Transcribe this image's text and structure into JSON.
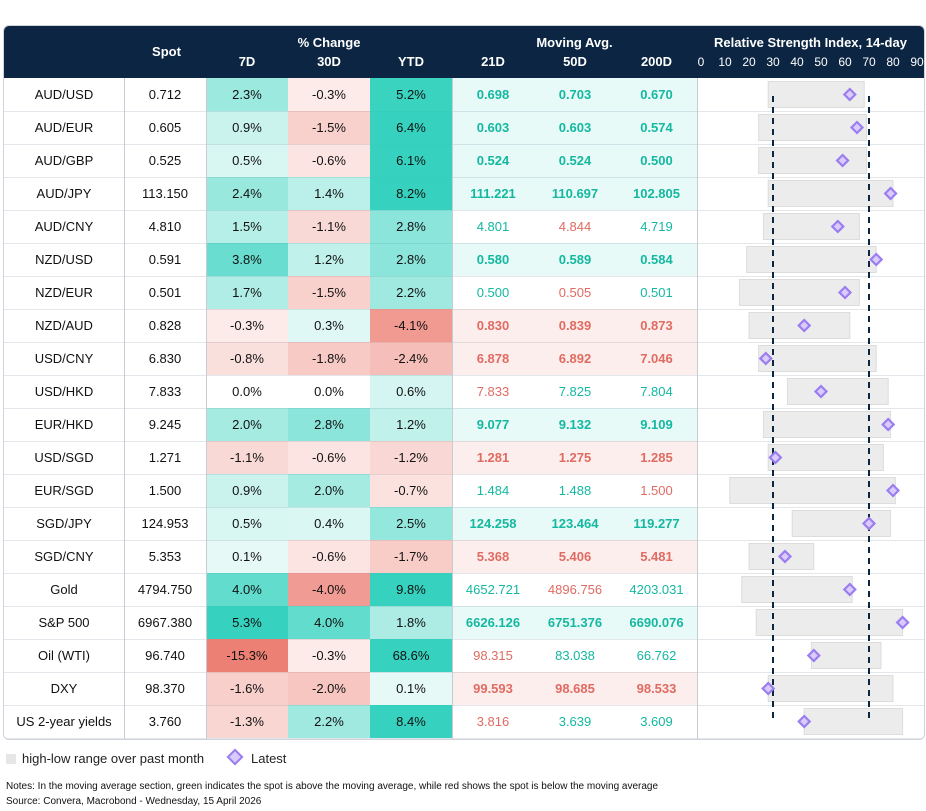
{
  "headers": {
    "spot": "Spot",
    "pct_change": "% Change",
    "d7": "7D",
    "d30": "30D",
    "ytd": "YTD",
    "moving_avg": "Moving Avg.",
    "ma21": "21D",
    "ma50": "50D",
    "ma200": "200D",
    "rsi_title": "Relative Strength Index, 14-day"
  },
  "chart_data": {
    "type": "table",
    "rsi_axis": {
      "min": 0,
      "max": 90,
      "ticks": [
        0,
        10,
        20,
        30,
        40,
        50,
        60,
        70,
        80,
        90
      ],
      "reference_lines": [
        30,
        70
      ]
    },
    "rows": [
      {
        "name": "AUD/USD",
        "spot": "0.712",
        "d7": "2.3%",
        "d30": "-0.3%",
        "ytd": "5.2%",
        "ma21": "0.698",
        "ma50": "0.703",
        "ma200": "0.670",
        "ma_colors": [
          "green",
          "green",
          "green"
        ],
        "ma_bold": true,
        "rsi_low": 28,
        "rsi_high": 68,
        "rsi_latest": 62
      },
      {
        "name": "AUD/EUR",
        "spot": "0.605",
        "d7": "0.9%",
        "d30": "-1.5%",
        "ytd": "6.4%",
        "ma21": "0.603",
        "ma50": "0.603",
        "ma200": "0.574",
        "ma_colors": [
          "green",
          "green",
          "green"
        ],
        "ma_bold": true,
        "rsi_low": 24,
        "rsi_high": 69,
        "rsi_latest": 65
      },
      {
        "name": "AUD/GBP",
        "spot": "0.525",
        "d7": "0.5%",
        "d30": "-0.6%",
        "ytd": "6.1%",
        "ma21": "0.524",
        "ma50": "0.524",
        "ma200": "0.500",
        "ma_colors": [
          "green",
          "green",
          "green"
        ],
        "ma_bold": true,
        "rsi_low": 24,
        "rsi_high": 69,
        "rsi_latest": 59
      },
      {
        "name": "AUD/JPY",
        "spot": "113.150",
        "d7": "2.4%",
        "d30": "1.4%",
        "ytd": "8.2%",
        "ma21": "111.221",
        "ma50": "110.697",
        "ma200": "102.805",
        "ma_colors": [
          "green",
          "green",
          "green"
        ],
        "ma_bold": true,
        "rsi_low": 28,
        "rsi_high": 80,
        "rsi_latest": 79
      },
      {
        "name": "AUD/CNY",
        "spot": "4.810",
        "d7": "1.5%",
        "d30": "-1.1%",
        "ytd": "2.8%",
        "ma21": "4.801",
        "ma50": "4.844",
        "ma200": "4.719",
        "ma_colors": [
          "green",
          "red",
          "green"
        ],
        "ma_bold": false,
        "rsi_low": 26,
        "rsi_high": 66,
        "rsi_latest": 57
      },
      {
        "name": "NZD/USD",
        "spot": "0.591",
        "d7": "3.8%",
        "d30": "1.2%",
        "ytd": "2.8%",
        "ma21": "0.580",
        "ma50": "0.589",
        "ma200": "0.584",
        "ma_colors": [
          "green",
          "green",
          "green"
        ],
        "ma_bold": true,
        "rsi_low": 19,
        "rsi_high": 73,
        "rsi_latest": 73
      },
      {
        "name": "NZD/EUR",
        "spot": "0.501",
        "d7": "1.7%",
        "d30": "-1.5%",
        "ytd": "2.2%",
        "ma21": "0.500",
        "ma50": "0.505",
        "ma200": "0.501",
        "ma_colors": [
          "green",
          "red",
          "green"
        ],
        "ma_bold": false,
        "rsi_low": 16,
        "rsi_high": 66,
        "rsi_latest": 60
      },
      {
        "name": "NZD/AUD",
        "spot": "0.828",
        "d7": "-0.3%",
        "d30": "0.3%",
        "ytd": "-4.1%",
        "ma21": "0.830",
        "ma50": "0.839",
        "ma200": "0.873",
        "ma_colors": [
          "red",
          "red",
          "red"
        ],
        "ma_bold": true,
        "rsi_low": 20,
        "rsi_high": 62,
        "rsi_latest": 43
      },
      {
        "name": "USD/CNY",
        "spot": "6.830",
        "d7": "-0.8%",
        "d30": "-1.8%",
        "ytd": "-2.4%",
        "ma21": "6.878",
        "ma50": "6.892",
        "ma200": "7.046",
        "ma_colors": [
          "red",
          "red",
          "red"
        ],
        "ma_bold": true,
        "rsi_low": 24,
        "rsi_high": 73,
        "rsi_latest": 27
      },
      {
        "name": "USD/HKD",
        "spot": "7.833",
        "d7": "0.0%",
        "d30": "0.0%",
        "ytd": "0.6%",
        "ma21": "7.833",
        "ma50": "7.825",
        "ma200": "7.804",
        "ma_colors": [
          "red",
          "green",
          "green"
        ],
        "ma_bold": false,
        "rsi_low": 36,
        "rsi_high": 78,
        "rsi_latest": 50
      },
      {
        "name": "EUR/HKD",
        "spot": "9.245",
        "d7": "2.0%",
        "d30": "2.8%",
        "ytd": "1.2%",
        "ma21": "9.077",
        "ma50": "9.132",
        "ma200": "9.109",
        "ma_colors": [
          "green",
          "green",
          "green"
        ],
        "ma_bold": true,
        "rsi_low": 26,
        "rsi_high": 79,
        "rsi_latest": 78
      },
      {
        "name": "USD/SGD",
        "spot": "1.271",
        "d7": "-1.1%",
        "d30": "-0.6%",
        "ytd": "-1.2%",
        "ma21": "1.281",
        "ma50": "1.275",
        "ma200": "1.285",
        "ma_colors": [
          "red",
          "red",
          "red"
        ],
        "ma_bold": true,
        "rsi_low": 28,
        "rsi_high": 76,
        "rsi_latest": 31
      },
      {
        "name": "EUR/SGD",
        "spot": "1.500",
        "d7": "0.9%",
        "d30": "2.0%",
        "ytd": "-0.7%",
        "ma21": "1.484",
        "ma50": "1.488",
        "ma200": "1.500",
        "ma_colors": [
          "green",
          "green",
          "red"
        ],
        "ma_bold": false,
        "rsi_low": 12,
        "rsi_high": 81,
        "rsi_latest": 80
      },
      {
        "name": "SGD/JPY",
        "spot": "124.953",
        "d7": "0.5%",
        "d30": "0.4%",
        "ytd": "2.5%",
        "ma21": "124.258",
        "ma50": "123.464",
        "ma200": "119.277",
        "ma_colors": [
          "green",
          "green",
          "green"
        ],
        "ma_bold": true,
        "rsi_low": 38,
        "rsi_high": 79,
        "rsi_latest": 70
      },
      {
        "name": "SGD/CNY",
        "spot": "5.353",
        "d7": "0.1%",
        "d30": "-0.6%",
        "ytd": "-1.7%",
        "ma21": "5.368",
        "ma50": "5.406",
        "ma200": "5.481",
        "ma_colors": [
          "red",
          "red",
          "red"
        ],
        "ma_bold": true,
        "rsi_low": 20,
        "rsi_high": 47,
        "rsi_latest": 35
      },
      {
        "name": "Gold",
        "spot": "4794.750",
        "d7": "4.0%",
        "d30": "-4.0%",
        "ytd": "9.8%",
        "ma21": "4652.721",
        "ma50": "4896.756",
        "ma200": "4203.031",
        "ma_colors": [
          "green",
          "red",
          "green"
        ],
        "ma_bold": false,
        "rsi_low": 17,
        "rsi_high": 63,
        "rsi_latest": 62
      },
      {
        "name": "S&P 500",
        "spot": "6967.380",
        "d7": "5.3%",
        "d30": "4.0%",
        "ytd": "1.8%",
        "ma21": "6626.126",
        "ma50": "6751.376",
        "ma200": "6690.076",
        "ma_colors": [
          "green",
          "green",
          "green"
        ],
        "ma_bold": true,
        "rsi_low": 23,
        "rsi_high": 84,
        "rsi_latest": 84
      },
      {
        "name": "Oil (WTI)",
        "spot": "96.740",
        "d7": "-15.3%",
        "d30": "-0.3%",
        "ytd": "68.6%",
        "ma21": "98.315",
        "ma50": "83.038",
        "ma200": "66.762",
        "ma_colors": [
          "red",
          "green",
          "green"
        ],
        "ma_bold": false,
        "rsi_low": 46,
        "rsi_high": 75,
        "rsi_latest": 47
      },
      {
        "name": "DXY",
        "spot": "98.370",
        "d7": "-1.6%",
        "d30": "-2.0%",
        "ytd": "0.1%",
        "ma21": "99.593",
        "ma50": "98.685",
        "ma200": "98.533",
        "ma_colors": [
          "red",
          "red",
          "red"
        ],
        "ma_bold": true,
        "rsi_low": 28,
        "rsi_high": 80,
        "rsi_latest": 28
      },
      {
        "name": "US 2-year yields",
        "spot": "3.760",
        "d7": "-1.3%",
        "d30": "2.2%",
        "ytd": "8.4%",
        "ma21": "3.816",
        "ma50": "3.639",
        "ma200": "3.609",
        "ma_colors": [
          "red",
          "green",
          "green"
        ],
        "ma_bold": false,
        "rsi_low": 43,
        "rsi_high": 84,
        "rsi_latest": 43
      }
    ]
  },
  "legend": {
    "range_label": "high-low range over past month",
    "latest_label": "Latest"
  },
  "notes": {
    "line1": "Notes: In the moving average section, green indicates the spot is above the moving average, while red shows the spot is below the moving average",
    "line2": "Source: Convera, Macrobond - Wednesday, 15 April 2026"
  },
  "colors": {
    "header_bg": "#0b2542",
    "ma_green": "#14b8a0",
    "ma_red": "#e06b62",
    "positive_heat": "#20cdb8",
    "negative_heat": "#ea7266",
    "rsi_marker": "#9b7df0",
    "rsi_range": "#ececec"
  }
}
